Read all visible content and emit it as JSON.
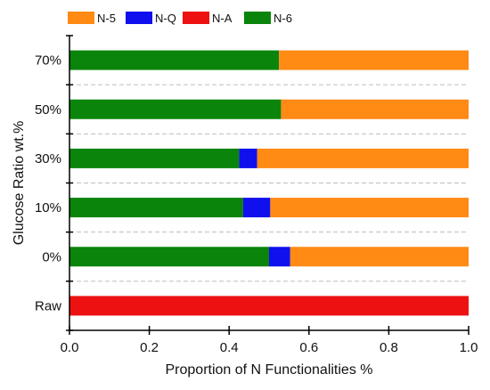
{
  "chart_data": {
    "type": "bar",
    "orientation": "horizontal",
    "stacked": true,
    "title": "",
    "xlabel": "Proportion of N Functionalities %",
    "ylabel": "Glucose Ratio wt.%",
    "xlim": [
      0.0,
      1.0
    ],
    "x_ticks": [
      "0.0",
      "0.2",
      "0.4",
      "0.6",
      "0.8",
      "1.0"
    ],
    "grid": "horizontal dashed",
    "legend_position": "top",
    "categories": [
      "70%",
      "50%",
      "30%",
      "10%",
      "0%",
      "Raw"
    ],
    "series": [
      {
        "name": "N-6",
        "color": "#0a840a",
        "values": [
          0.525,
          0.53,
          0.425,
          0.435,
          0.5,
          0.0
        ]
      },
      {
        "name": "N-Q",
        "color": "#1010ee",
        "values": [
          0.0,
          0.0,
          0.045,
          0.068,
          0.053,
          0.0
        ]
      },
      {
        "name": "N-A",
        "color": "#ee1111",
        "values": [
          0.0,
          0.0,
          0.0,
          0.0,
          0.0,
          1.0
        ]
      },
      {
        "name": "N-5",
        "color": "#ff8a14",
        "values": [
          0.475,
          0.47,
          0.53,
          0.497,
          0.447,
          0.0
        ]
      }
    ],
    "legend_order": [
      "N-5",
      "N-Q",
      "N-A",
      "N-6"
    ]
  }
}
